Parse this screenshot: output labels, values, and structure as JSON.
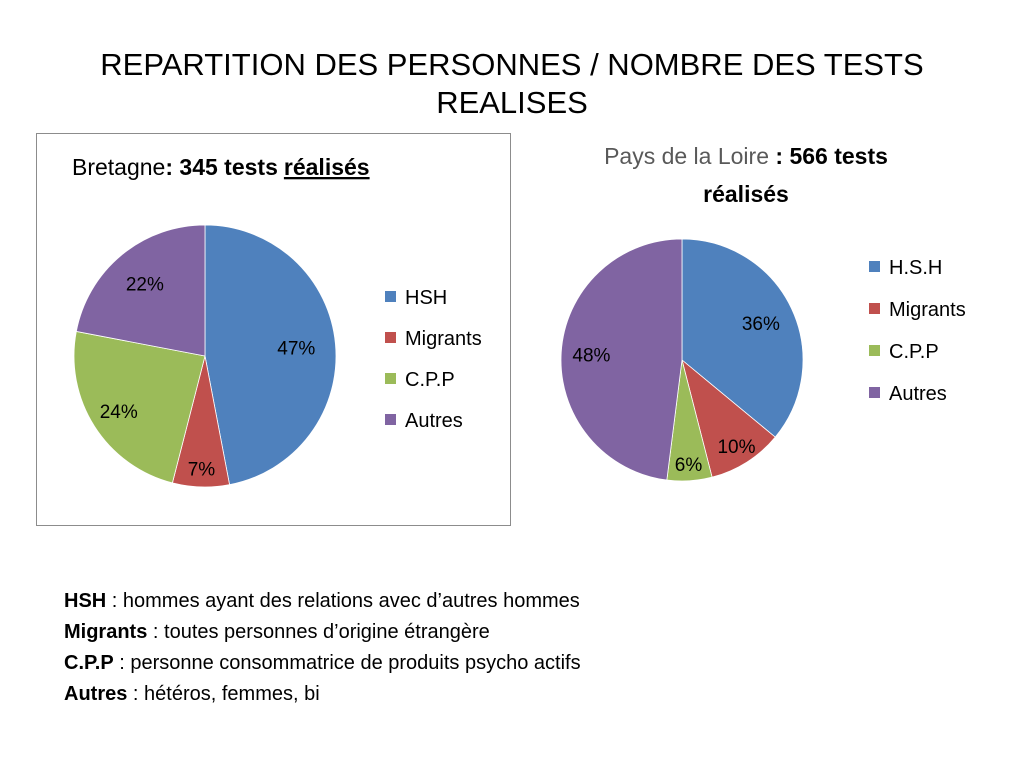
{
  "slide": {
    "title_line1": "REPARTITION DES PERSONNES / NOMBRE DES TESTS",
    "title_line2": "REALISES"
  },
  "chart_data": [
    {
      "type": "pie",
      "title_region": "Bretagne",
      "title_sep": ": ",
      "title_count": "345 tests",
      "title_word": "réalisés",
      "categories": [
        "HSH",
        "Migrants",
        "C.P.P",
        "Autres"
      ],
      "values": [
        47,
        7,
        24,
        22
      ],
      "labels": [
        "47%",
        "7%",
        "24%",
        "22%"
      ],
      "colors": [
        "#4f81bd",
        "#c0504d",
        "#9bbb59",
        "#8064a2"
      ],
      "legend": "right",
      "frame": true
    },
    {
      "type": "pie",
      "title_region": "Pays de la Loire",
      "title_sep": " : ",
      "title_count": "566 tests",
      "title_word": "réalisés",
      "categories": [
        "H.S.H",
        "Migrants",
        "C.P.P",
        "Autres"
      ],
      "values": [
        36,
        10,
        6,
        48
      ],
      "labels": [
        "36%",
        "10%",
        "6%",
        "48%"
      ],
      "colors": [
        "#4f81bd",
        "#c0504d",
        "#9bbb59",
        "#8064a2"
      ],
      "legend": "right",
      "frame": false
    }
  ],
  "glossary": [
    {
      "term": "HSH",
      "definition": " : hommes ayant des relations avec d’autres hommes"
    },
    {
      "term": "Migrants",
      "definition": " : toutes personnes d’origine étrangère"
    },
    {
      "term": "C.P.P",
      "definition": " : personne consommatrice de produits psycho actifs"
    },
    {
      "term": "Autres",
      "definition": " : hétéros, femmes, bi"
    }
  ]
}
